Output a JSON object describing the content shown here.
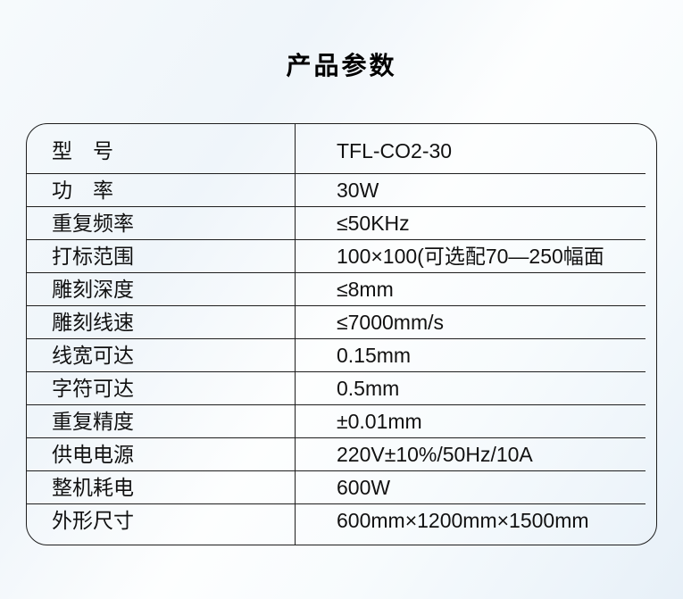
{
  "page": {
    "title": "产品参数",
    "colors": {
      "background_tint": "#e7f0f8",
      "line": "#1e1e1e",
      "text": "#111111"
    }
  },
  "table": {
    "rows": [
      {
        "label": "型　号",
        "value": "TFL-CO2-30"
      },
      {
        "label": "功　率",
        "value": "30W"
      },
      {
        "label": "重复频率",
        "value": "≤50KHz"
      },
      {
        "label": "打标范围",
        "value": "100×100(可选配70—250幅面"
      },
      {
        "label": "雕刻深度",
        "value": "≤8mm"
      },
      {
        "label": "雕刻线速",
        "value": "≤7000mm/s"
      },
      {
        "label": "线宽可达",
        "value": "0.15mm"
      },
      {
        "label": "字符可达",
        "value": "0.5mm"
      },
      {
        "label": "重复精度",
        "value": "±0.01mm"
      },
      {
        "label": "供电电源",
        "value": "220V±10%/50Hz/10A"
      },
      {
        "label": "整机耗电",
        "value": "600W"
      },
      {
        "label": "外形尺寸",
        "value": "600mm×1200mm×1500mm"
      }
    ]
  }
}
